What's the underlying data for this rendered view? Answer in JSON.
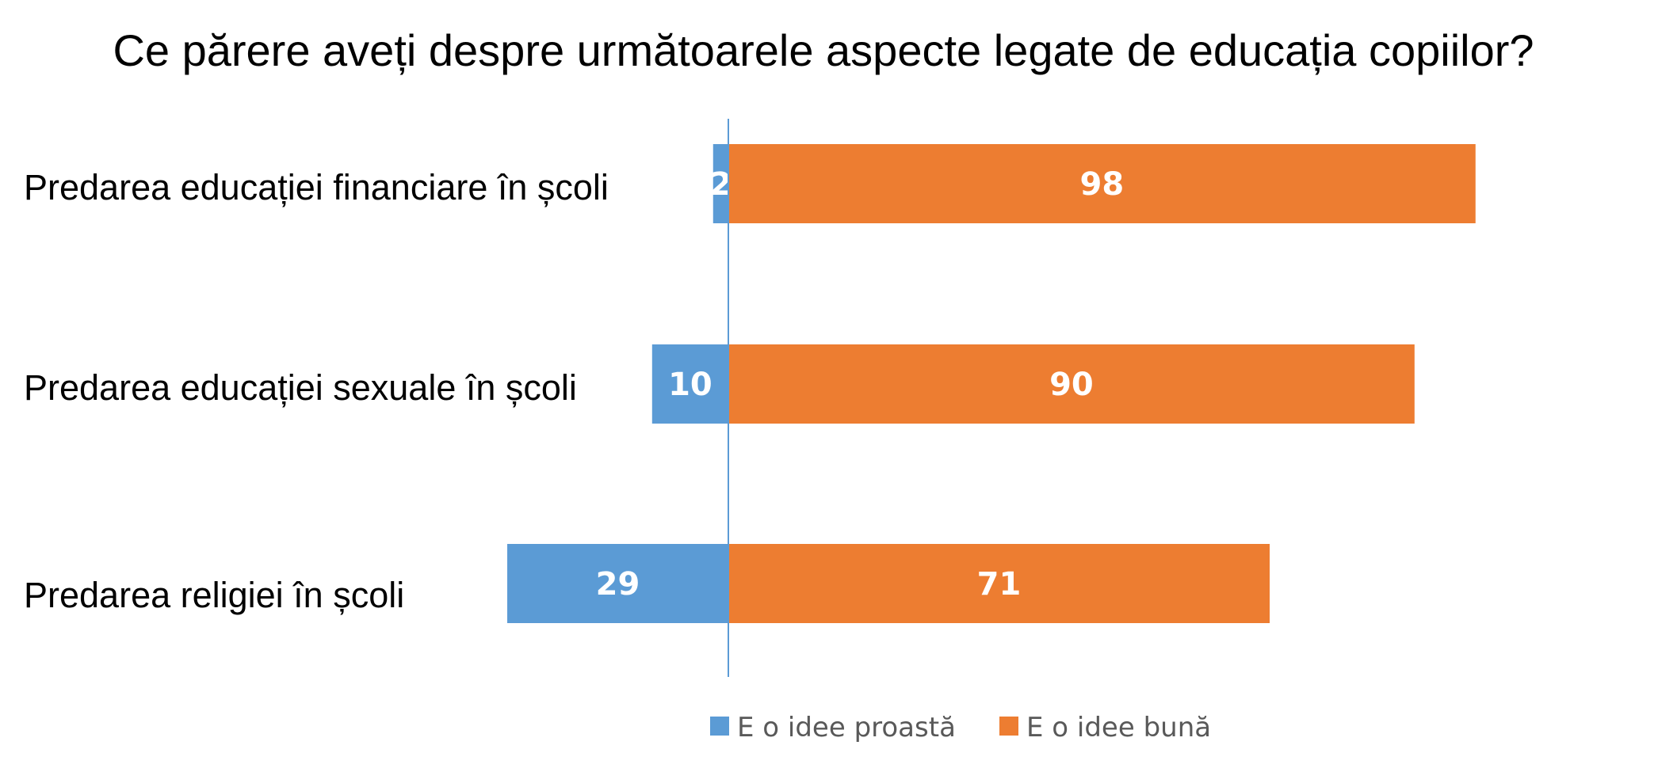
{
  "chart_data": {
    "type": "bar",
    "orientation": "horizontal",
    "stacked": "diverging",
    "title": "Ce părere aveți despre următoarele aspecte legate de educația copiilor?",
    "categories": [
      "Predarea educației financiare în școli",
      "Predarea educației sexuale în școli",
      "Predarea religiei în școli"
    ],
    "series": [
      {
        "name": "E o idee proastă",
        "values": [
          2,
          10,
          29
        ],
        "color": "#5b9bd5",
        "direction": "left"
      },
      {
        "name": "E o idee bună",
        "values": [
          98,
          90,
          71
        ],
        "color": "#ed7d31",
        "direction": "right"
      }
    ],
    "data_labels": true,
    "legend_position": "bottom",
    "grid": false
  }
}
